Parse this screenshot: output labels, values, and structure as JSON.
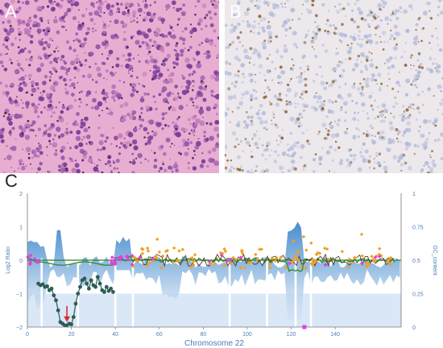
{
  "panels": {
    "a": {
      "letter": "A"
    },
    "b": {
      "letter": "B"
    },
    "c": {
      "letter": "C"
    }
  },
  "colors": {
    "he_background": "#e8aed2",
    "ihc_background": "#ece8ec",
    "area_fill": "#3f86cc",
    "loss_segment": "#2c5d55",
    "gc_line": "#3a8a2e",
    "ratio_line": "#5a3a2a",
    "zero_line": "#2e7d32",
    "magenta_points": "#e040e0",
    "orange_points": "#f0a020",
    "arrow": "#d32f2f"
  },
  "chart_data": {
    "type": "scatter",
    "xlabel": "Chromosome 22",
    "ylabel_left": "Log2 Ratio",
    "ylabel_right": "GC_content",
    "xlim": [
      0,
      170
    ],
    "ylim": [
      -2,
      2
    ],
    "ylim_right": [
      0,
      1
    ],
    "x_ticks": [
      "0",
      "20",
      "40",
      "60",
      "80",
      "100",
      "120",
      "140"
    ],
    "y_ticks_left": [
      "2",
      "1",
      "0",
      "−1",
      "−2"
    ],
    "y_ticks_right": [
      "1",
      "0.75",
      "0.5",
      "0.25",
      "0"
    ],
    "grid": false,
    "arrow_position": {
      "x": 18,
      "y": -1.85
    },
    "centromere_marker": {
      "x": 126,
      "y": -2
    }
  }
}
